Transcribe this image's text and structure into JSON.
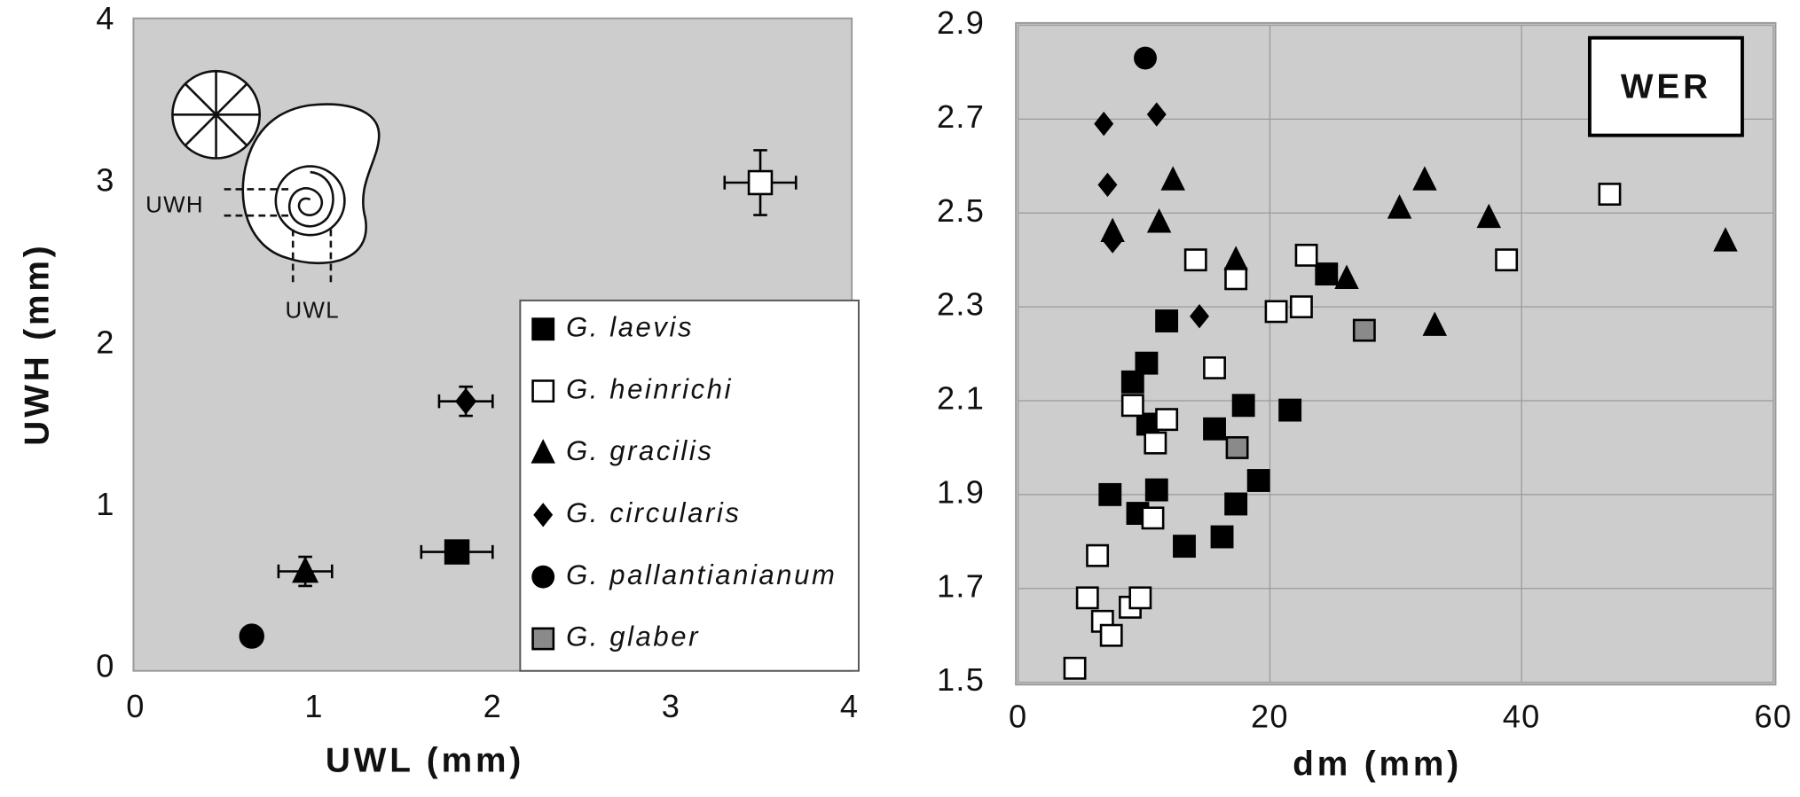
{
  "chart_data": [
    {
      "type": "scatter",
      "xlabel": "UWL (mm)",
      "ylabel": "UWH (mm)",
      "xlim": [
        0,
        4
      ],
      "ylim": [
        0,
        4
      ],
      "xticks": [
        0,
        1,
        2,
        3,
        4
      ],
      "yticks": [
        0,
        1,
        2,
        3,
        4
      ],
      "grid": false,
      "legend": true,
      "legend_position": "lower right",
      "annotations": [
        "UWH",
        "UWL"
      ],
      "series": [
        {
          "name": "G. laevis",
          "marker": "square",
          "color": "#000000",
          "x": [
            1.8
          ],
          "values": [
            0.72
          ],
          "xerr": [
            0.2
          ],
          "yerr": [
            0.06
          ]
        },
        {
          "name": "G. heinrichi",
          "marker": "square",
          "color": "#ffffff",
          "x": [
            3.5
          ],
          "values": [
            3.0
          ],
          "xerr": [
            0.2
          ],
          "yerr": [
            0.2
          ]
        },
        {
          "name": "G. gracilis",
          "marker": "triangle",
          "color": "#000000",
          "x": [
            0.95
          ],
          "values": [
            0.6
          ],
          "xerr": [
            0.15
          ],
          "yerr": [
            0.09
          ]
        },
        {
          "name": "G. circularis",
          "marker": "diamond",
          "color": "#000000",
          "x": [
            1.85
          ],
          "values": [
            1.65
          ],
          "xerr": [
            0.15
          ],
          "yerr": [
            0.09
          ]
        },
        {
          "name": "G. pallantianianum",
          "marker": "circle",
          "color": "#000000",
          "x": [
            0.65
          ],
          "values": [
            0.2
          ]
        },
        {
          "name": "G. glaber",
          "marker": "square",
          "color": "#8a8a8a",
          "x": [],
          "values": []
        }
      ]
    },
    {
      "type": "scatter",
      "xlabel": "dm (mm)",
      "xlim": [
        0,
        60
      ],
      "ylim": [
        1.5,
        2.9
      ],
      "xticks": [
        0,
        20,
        40,
        60
      ],
      "yticks": [
        1.5,
        1.7,
        1.9,
        2.1,
        2.3,
        2.5,
        2.7,
        2.9
      ],
      "grid": true,
      "legend": false,
      "annotations": [
        "WER"
      ],
      "series": [
        {
          "name": "G. laevis",
          "marker": "square",
          "color": "#000000",
          "x": [
            11.8,
            9.1,
            10.2,
            10.3,
            7.3,
            9.5,
            11.0,
            13.2,
            16.2,
            15.6,
            17.9,
            21.6,
            19.1,
            17.3,
            24.5
          ],
          "values": [
            2.27,
            2.14,
            2.18,
            2.05,
            1.9,
            1.86,
            1.91,
            1.79,
            1.81,
            2.04,
            2.09,
            2.08,
            1.93,
            1.88,
            2.37
          ]
        },
        {
          "name": "G. heinrichi",
          "marker": "square",
          "color": "#ffffff",
          "x": [
            4.5,
            5.5,
            6.3,
            6.7,
            7.4,
            8.9,
            9.7,
            9.1,
            10.9,
            11.8,
            10.7,
            14.1,
            17.3,
            15.6,
            20.5,
            22.5,
            22.9,
            38.8,
            47.0
          ],
          "values": [
            1.53,
            1.68,
            1.77,
            1.63,
            1.6,
            1.66,
            1.68,
            2.09,
            2.01,
            2.06,
            1.85,
            2.4,
            2.36,
            2.17,
            2.29,
            2.3,
            2.41,
            2.4,
            2.54
          ]
        },
        {
          "name": "G. gracilis",
          "marker": "triangle",
          "color": "#000000",
          "x": [
            7.5,
            12.3,
            11.2,
            17.3,
            26.1,
            30.3,
            32.3,
            33.1,
            37.4,
            56.2
          ],
          "values": [
            2.46,
            2.57,
            2.48,
            2.4,
            2.36,
            2.51,
            2.57,
            2.26,
            2.49,
            2.44
          ]
        },
        {
          "name": "G. circularis",
          "marker": "diamond",
          "color": "#000000",
          "x": [
            7.1,
            6.8,
            11.0,
            7.5,
            14.4
          ],
          "values": [
            2.56,
            2.69,
            2.71,
            2.44,
            2.28
          ]
        },
        {
          "name": "G. pallantianianum",
          "marker": "circle",
          "color": "#000000",
          "x": [
            10.1
          ],
          "values": [
            2.83
          ]
        },
        {
          "name": "G. glaber",
          "marker": "square",
          "color": "#8a8a8a",
          "x": [
            27.5,
            17.4
          ],
          "values": [
            2.25,
            2.0
          ]
        }
      ]
    }
  ]
}
